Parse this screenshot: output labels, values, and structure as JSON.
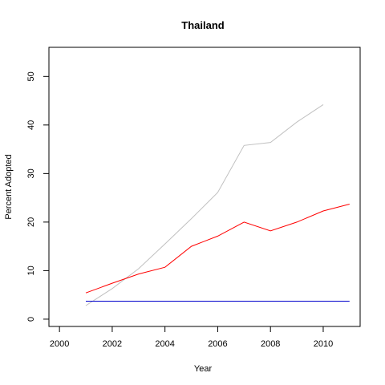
{
  "chart_data": {
    "type": "line",
    "title": "Thailand",
    "xlabel": "Year",
    "ylabel": "Percent Adopted",
    "xlim": [
      1999.6,
      2011.4
    ],
    "ylim": [
      -1.5,
      56
    ],
    "grid": false,
    "x_ticks": [
      2000,
      2002,
      2004,
      2006,
      2008,
      2010
    ],
    "y_ticks": [
      0,
      10,
      20,
      30,
      40,
      50
    ],
    "series": [
      {
        "color": "#c0c0c0",
        "x": [
          2001,
          2002,
          2003,
          2004,
          2005,
          2006,
          2007,
          2008,
          2009,
          2010
        ],
        "values": [
          2.8,
          6.3,
          10.4,
          15.5,
          20.7,
          26.1,
          35.8,
          36.4,
          40.6,
          44.2
        ]
      },
      {
        "color": "#ff0000",
        "x": [
          2001,
          2002,
          2003,
          2004,
          2005,
          2006,
          2007,
          2008,
          2009,
          2010,
          2011
        ],
        "values": [
          5.4,
          7.4,
          9.3,
          10.7,
          15.0,
          17.1,
          20.0,
          18.2,
          20.0,
          22.3,
          23.7
        ]
      },
      {
        "color": "#0000cc",
        "x": [
          2001,
          2011
        ],
        "values": [
          3.7,
          3.7
        ]
      }
    ]
  }
}
